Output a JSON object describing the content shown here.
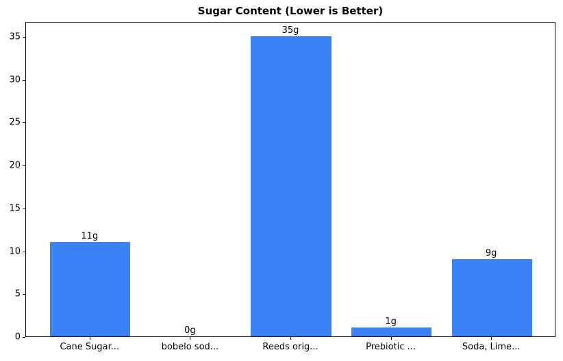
{
  "chart_data": {
    "type": "bar",
    "title": "Sugar Content (Lower is Better)",
    "categories": [
      "Cane Sugar...",
      "bobelo sod...",
      "Reeds orig...",
      "Prebiotic ...",
      "Soda, Lime..."
    ],
    "values": [
      11,
      0,
      35,
      1,
      9
    ],
    "bar_labels": [
      "11g",
      "0g",
      "35g",
      "1g",
      "9g"
    ],
    "xlabel": "",
    "ylabel": "",
    "ylim": [
      0,
      36.75
    ],
    "yticks": [
      0,
      5,
      10,
      15,
      20,
      25,
      30,
      35
    ],
    "bar_color": "#3b82f6",
    "frame_color": "#000000",
    "background_color": "#ffffff",
    "grid": false,
    "legend_position": "none",
    "bar_width_fraction": 0.8
  }
}
